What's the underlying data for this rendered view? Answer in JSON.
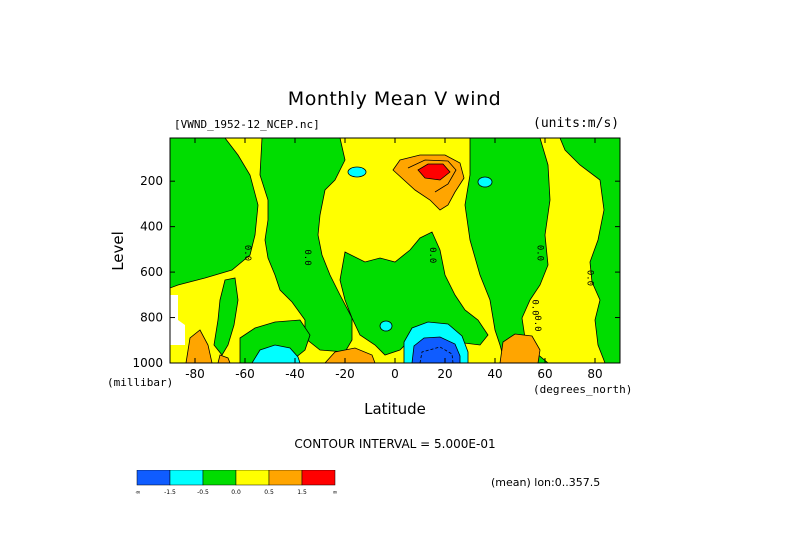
{
  "chart_data": {
    "type": "heatmap",
    "title": "Monthly Mean V wind",
    "dataset_label": "[VWND_1952-12_NCEP.nc]",
    "units_label": "(units:m/s)",
    "xlabel": "Latitude",
    "x_units": "(degrees_north)",
    "ylabel": "Level",
    "y_units": "(millibar)",
    "x_ticks": [
      -80,
      -60,
      -40,
      -20,
      0,
      20,
      40,
      60,
      80
    ],
    "y_ticks": [
      200,
      400,
      600,
      800,
      1000
    ],
    "xlim": [
      -90,
      90
    ],
    "ylim": [
      1000,
      10
    ],
    "contour_interval_label": "CONTOUR INTERVAL = 5.000E-01",
    "mean_label": "(mean) lon:0..357.5",
    "contour_labels": [
      "0.0",
      "0.0",
      "0.0",
      "0.0",
      "0.0",
      "0.0",
      "0.0"
    ],
    "colorbar": {
      "colors": [
        "#0f5cff",
        "#00ffff",
        "#00dd00",
        "#ffff00",
        "#ffa500",
        "#ff0000"
      ],
      "tick_labels": [
        "-∞",
        "-1.5",
        "-0.5",
        "0.0",
        "0.5",
        "1.5",
        "∞"
      ]
    },
    "features": [
      {
        "name": "southward jet core",
        "lat": 15,
        "level": 960,
        "value": -2.0
      },
      {
        "name": "northward jet core",
        "lat": 15,
        "level": 150,
        "value": 2.0
      },
      {
        "name": "southern hemisphere negative region",
        "lat": -55,
        "level": 400,
        "value": -0.5
      },
      {
        "name": "northern hemisphere negative region",
        "lat": 60,
        "level": 450,
        "value": -0.5
      }
    ]
  }
}
